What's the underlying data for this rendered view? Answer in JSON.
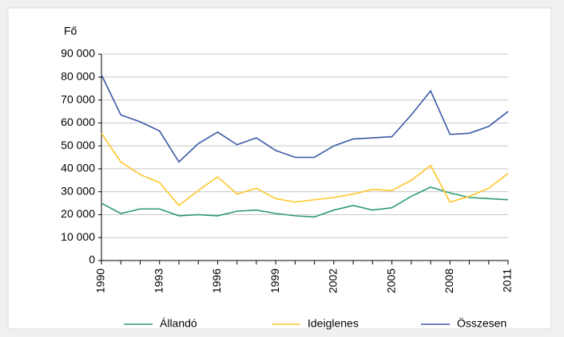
{
  "chart_data": {
    "type": "line",
    "ylabel": "Fő",
    "x": [
      1990,
      1991,
      1992,
      1993,
      1994,
      1995,
      1996,
      1997,
      1998,
      1999,
      2000,
      2001,
      2002,
      2003,
      2004,
      2005,
      2006,
      2007,
      2008,
      2009,
      2010,
      2011
    ],
    "xlim": [
      1990,
      2011
    ],
    "xticks": [
      1990,
      1993,
      1996,
      1999,
      2002,
      2005,
      2008,
      2011
    ],
    "ylim": [
      0,
      90000
    ],
    "yticks": [
      0,
      {
        "value": 10000,
        "label": "10 000"
      },
      {
        "value": 20000,
        "label": "20 000"
      },
      {
        "value": 30000,
        "label": "30 000"
      },
      {
        "value": 40000,
        "label": "40 000"
      },
      {
        "value": 50000,
        "label": "50 000"
      },
      {
        "value": 60000,
        "label": "60 000"
      },
      {
        "value": 70000,
        "label": "70 000"
      },
      {
        "value": 80000,
        "label": "80 000"
      },
      {
        "value": 90000,
        "label": "90 000"
      }
    ],
    "grid": true,
    "legend": "bottom",
    "series": [
      {
        "name": "Állandó",
        "color": "#2e9b6c",
        "values": [
          25000,
          20500,
          22500,
          22500,
          19500,
          20000,
          19500,
          21500,
          22000,
          20500,
          19500,
          19000,
          22000,
          24000,
          22000,
          23000,
          28000,
          32000,
          29500,
          27500,
          27000,
          26500
        ]
      },
      {
        "name": "Ideiglenes",
        "color": "#ffc629",
        "values": [
          55500,
          43000,
          37500,
          34000,
          24000,
          30500,
          36500,
          29000,
          31500,
          27000,
          25500,
          26500,
          27500,
          29000,
          31000,
          30500,
          35000,
          41500,
          25500,
          28000,
          31500,
          38000
        ]
      },
      {
        "name": "Összesen",
        "color": "#3b58a6",
        "values": [
          81000,
          63500,
          60500,
          56500,
          43000,
          51000,
          56000,
          50500,
          53500,
          48000,
          45000,
          45000,
          50000,
          53000,
          53500,
          54000,
          63500,
          74000,
          55000,
          55500,
          58500,
          65000
        ]
      }
    ]
  }
}
